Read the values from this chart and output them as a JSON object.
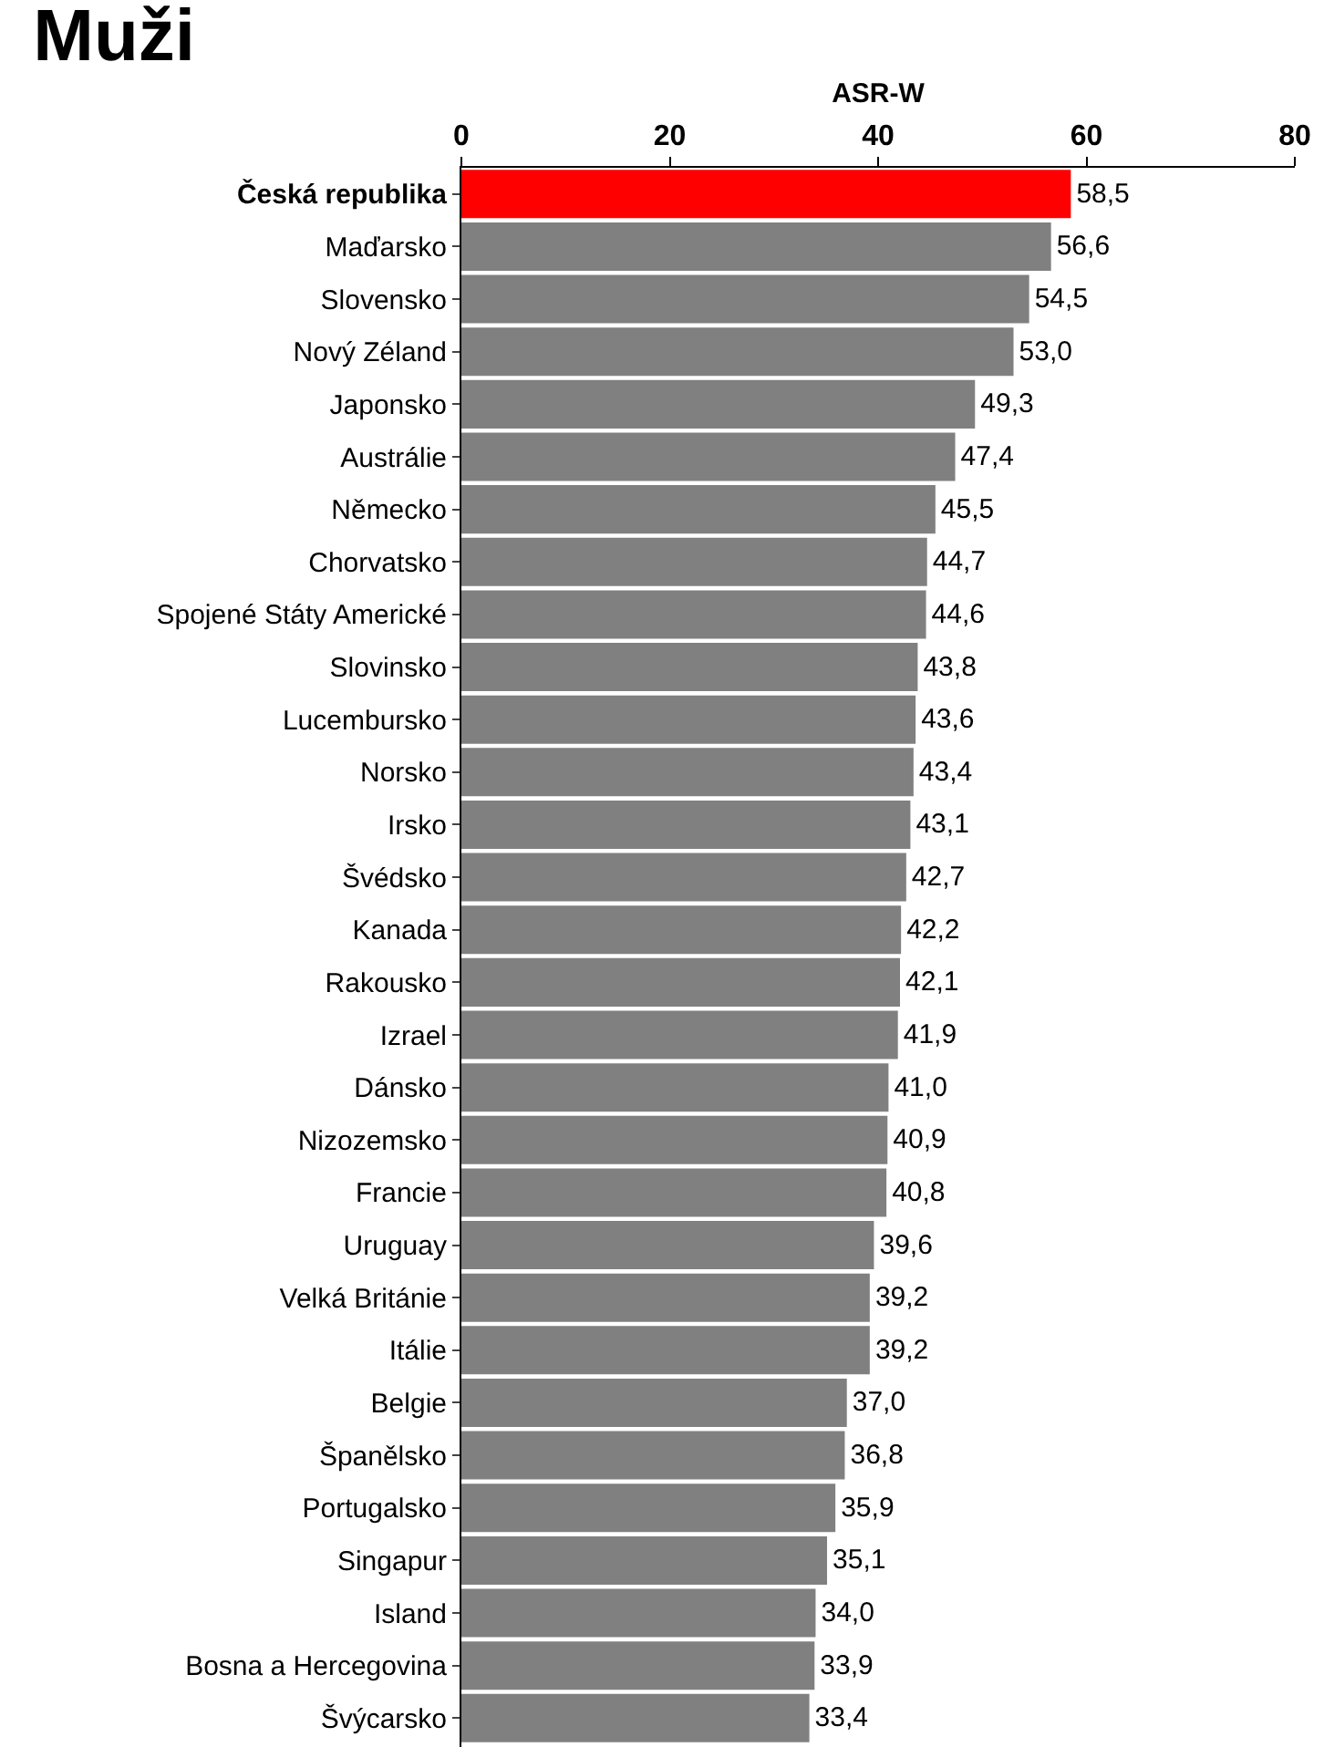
{
  "chart_data": {
    "type": "bar",
    "orientation": "horizontal",
    "title": "Muži",
    "xlabel": "ASR-W",
    "categories": [
      "Česká republika",
      "Maďarsko",
      "Slovensko",
      "Nový Zéland",
      "Japonsko",
      "Austrálie",
      "Německo",
      "Chorvatsko",
      "Spojené Státy Americké",
      "Slovinsko",
      "Lucembursko",
      "Norsko",
      "Irsko",
      "Švédsko",
      "Kanada",
      "Rakousko",
      "Izrael",
      "Dánsko",
      "Nizozemsko",
      "Francie",
      "Uruguay",
      "Velká Británie",
      "Itálie",
      "Belgie",
      "Španělsko",
      "Portugalsko",
      "Singapur",
      "Island",
      "Bosna a Hercegovina",
      "Švýcarsko"
    ],
    "values": [
      58.5,
      56.6,
      54.5,
      53.0,
      49.3,
      47.4,
      45.5,
      44.7,
      44.6,
      43.8,
      43.6,
      43.4,
      43.1,
      42.7,
      42.2,
      42.1,
      41.9,
      41.0,
      40.9,
      40.8,
      39.6,
      39.2,
      39.2,
      37.0,
      36.8,
      35.9,
      35.1,
      34.0,
      33.9,
      33.4
    ],
    "value_labels": [
      "58,5",
      "56,6",
      "54,5",
      "53,0",
      "49,3",
      "47,4",
      "45,5",
      "44,7",
      "44,6",
      "43,8",
      "43,6",
      "43,4",
      "43,1",
      "42,7",
      "42,2",
      "42,1",
      "41,9",
      "41,0",
      "40,9",
      "40,8",
      "39,6",
      "39,2",
      "39,2",
      "37,0",
      "36,8",
      "35,9",
      "35,1",
      "34,0",
      "33,9",
      "33,4"
    ],
    "colors": [
      "#ff0000",
      "#808080",
      "#808080",
      "#808080",
      "#808080",
      "#808080",
      "#808080",
      "#808080",
      "#808080",
      "#808080",
      "#808080",
      "#808080",
      "#808080",
      "#808080",
      "#808080",
      "#808080",
      "#808080",
      "#808080",
      "#808080",
      "#808080",
      "#808080",
      "#808080",
      "#808080",
      "#808080",
      "#808080",
      "#808080",
      "#808080",
      "#808080",
      "#808080",
      "#808080"
    ],
    "xlim": [
      0,
      80
    ],
    "xticks": [
      0,
      20,
      40,
      60,
      80
    ],
    "grid": false,
    "legend": false
  }
}
